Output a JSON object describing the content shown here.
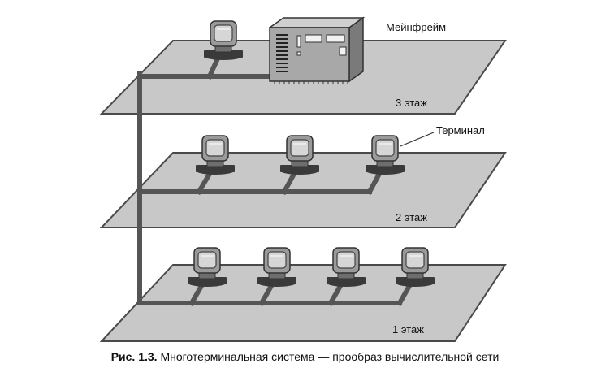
{
  "diagram": {
    "labels": {
      "mainframe": "Мейнфрейм",
      "terminal": "Терминал"
    },
    "floors": [
      {
        "label": "3 этаж",
        "terminals": 1,
        "has_mainframe": true
      },
      {
        "label": "2 этаж",
        "terminals": 3,
        "has_mainframe": false
      },
      {
        "label": "1 этаж",
        "terminals": 4,
        "has_mainframe": false
      }
    ],
    "colors": {
      "floor_fill": "#c8c8c8",
      "floor_stroke": "#4a4a4a",
      "cable": "#555555",
      "terminal_body": "#9a9a9a",
      "terminal_screen": "#d6d6d6",
      "keyboard": "#3a3a3a",
      "mainframe_body": "#a8a8a8"
    }
  },
  "caption": {
    "figure_label": "Рис. 1.3.",
    "text": " Многотерминальная система — прообраз вычислительной сети"
  }
}
